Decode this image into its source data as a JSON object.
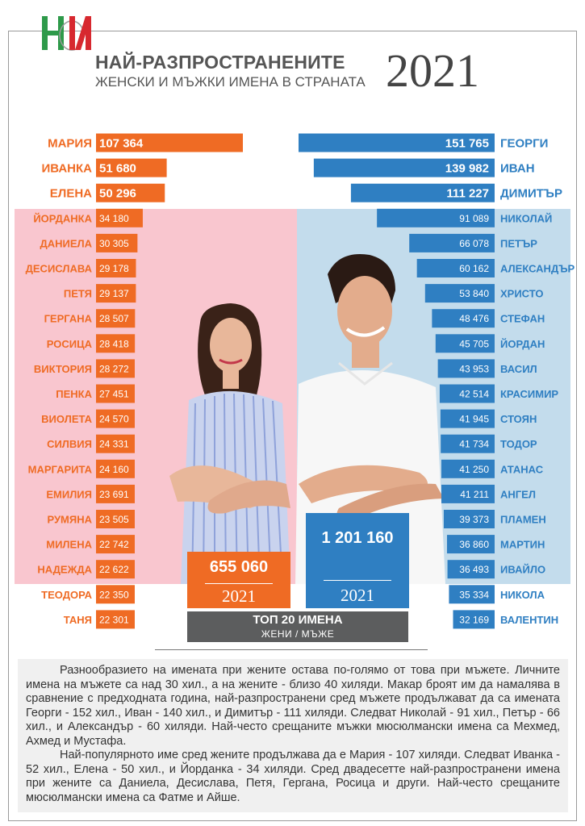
{
  "header": {
    "logo_letters": "НИ",
    "title_line1": "НАЙ-РАЗПРОСТРАНЕНИТЕ",
    "title_line2": "ЖЕНСКИ И МЪЖКИ ИМЕНА В СТРАНАТА",
    "year": "2021"
  },
  "colors": {
    "women_bar": "#ef6b24",
    "men_bar": "#2f7fc2",
    "women_label": "#ef6b24",
    "men_label": "#2f7fc2",
    "women_bg": "#f9c6cf",
    "men_bg": "#c3dcec",
    "logo_green": "#2e9a4a",
    "logo_red": "#d7282f"
  },
  "chart_data": {
    "type": "bar",
    "orientation": "horizontal-diverging",
    "series": [
      {
        "name": "ЖЕНИ",
        "categories": [
          "МАРИЯ",
          "ИВАНКА",
          "ЕЛЕНА",
          "ЙОРДАНКА",
          "ДАНИЕЛА",
          "ДЕСИСЛАВА",
          "ПЕТЯ",
          "ГЕРГАНА",
          "РОСИЦА",
          "ВИКТОРИЯ",
          "ПЕНКА",
          "ВИОЛЕТА",
          "СИЛВИЯ",
          "МАРГАРИТА",
          "ЕМИЛИЯ",
          "РУМЯНА",
          "МИЛЕНА",
          "НАДЕЖДА",
          "ТЕОДОРА",
          "ТАНЯ"
        ],
        "values": [
          107364,
          51680,
          50296,
          34180,
          30305,
          29178,
          29137,
          28507,
          28418,
          28272,
          27451,
          24570,
          24331,
          24160,
          23691,
          23505,
          22742,
          22622,
          22350,
          22301
        ],
        "labels": [
          "107 364",
          "51 680",
          "50 296",
          "34 180",
          "30 305",
          "29 178",
          "29 137",
          "28 507",
          "28 418",
          "28 272",
          "27 451",
          "24 570",
          "24 331",
          "24 160",
          "23 691",
          "23 505",
          "22 742",
          "22 622",
          "22 350",
          "22 301"
        ]
      },
      {
        "name": "МЪЖЕ",
        "categories": [
          "ГЕОРГИ",
          "ИВАН",
          "ДИМИТЪР",
          "НИКОЛАЙ",
          "ПЕТЪР",
          "АЛЕКСАНДЪР",
          "ХРИСТО",
          "СТЕФАН",
          "ЙОРДАН",
          "ВАСИЛ",
          "КРАСИМИР",
          "СТОЯН",
          "ТОДОР",
          "АТАНАС",
          "АНГЕЛ",
          "ПЛАМЕН",
          "МАРТИН",
          "ИВАЙЛО",
          "НИКОЛА",
          "ВАЛЕНТИН"
        ],
        "values": [
          151765,
          139982,
          111227,
          91089,
          66078,
          60162,
          53840,
          48476,
          45705,
          43953,
          42514,
          41945,
          41734,
          41250,
          41211,
          39373,
          36860,
          36493,
          35334,
          32169
        ],
        "labels": [
          "151 765",
          "139 982",
          "111 227",
          "91 089",
          "66 078",
          "60 162",
          "53 840",
          "48 476",
          "45 705",
          "43 953",
          "42 514",
          "41 945",
          "41 734",
          "41 250",
          "41 211",
          "39 373",
          "36 860",
          "36 493",
          "35 334",
          "32 169"
        ]
      }
    ]
  },
  "totals": {
    "women_value": "655 060",
    "women_year": "2021",
    "men_value": "1 201 160",
    "men_year": "2021"
  },
  "top20": {
    "title": "ТОП 20 ИМЕНА",
    "subtitle": "ЖЕНИ / МЪЖЕ"
  },
  "text": {
    "paragraph1": "Разнообразието на имената при жените остава по-голямо от това при мъжете. Личните имена на мъжете са над 30 хил., а на жените - близо 40 хиляди. Макар броят им да намалява в сравнение с предходната година, най-разпространени сред мъжете продължават да са имената Георги - 152 хил., Иван - 140 хил., и Димитър - 111 хиляди. Следват Николай - 91 хил., Петър - 66 хил., и Александър - 60 хиляди. Най-често срещаните мъжки мюсюлмански имена са Мехмед, Ахмед и Мустафа.",
    "paragraph2": "Най-популярното име сред жените продължава да е Мария - 107 хиляди. Следват Иванка - 52 хил., Елена - 50 хил., и Йорданка - 34 хиляди. Сред двадесетте най-разпространени имена при жените са Даниела, Десислава, Петя, Гергана, Росица и други. Най-често срещаните мюсюлмански имена са Фатме и Айше."
  }
}
